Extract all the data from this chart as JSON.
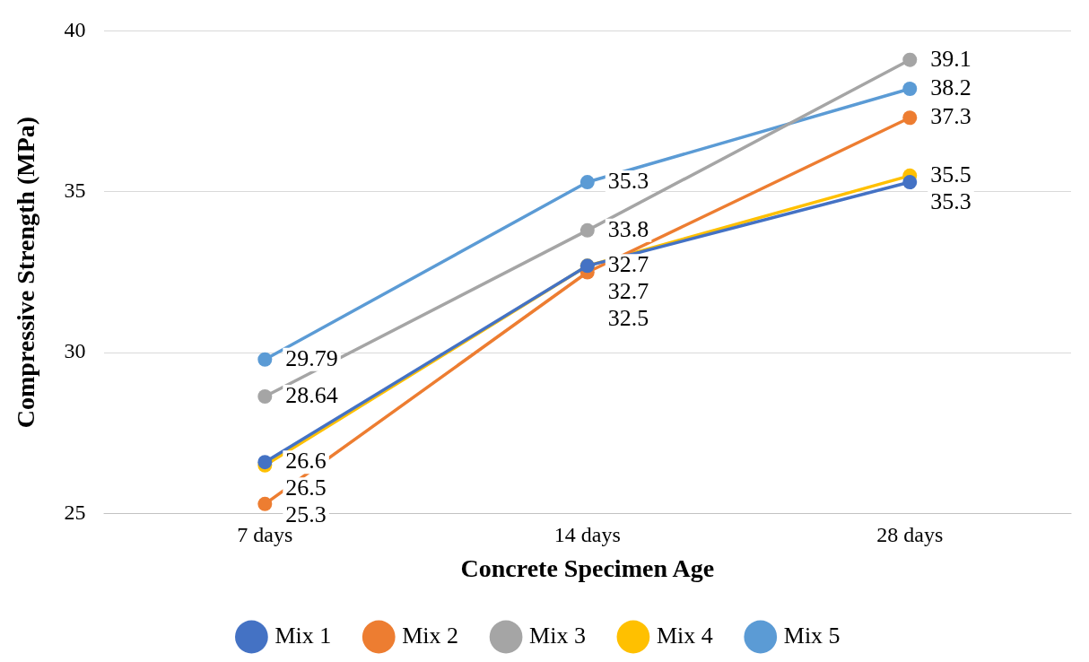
{
  "chart_data": {
    "type": "line",
    "xlabel": "Concrete Specimen Age",
    "ylabel": "Compressive Strength (MPa)",
    "categories": [
      "7 days",
      "14 days",
      "28 days"
    ],
    "series": [
      {
        "name": "Mix 1",
        "color": "#4472c4",
        "values": [
          26.6,
          32.7,
          35.3
        ]
      },
      {
        "name": "Mix 2",
        "color": "#ed7d31",
        "values": [
          25.3,
          32.5,
          37.3
        ]
      },
      {
        "name": "Mix 3",
        "color": "#a5a5a5",
        "values": [
          28.64,
          33.8,
          39.1
        ]
      },
      {
        "name": "Mix 4",
        "color": "#ffc000",
        "values": [
          26.5,
          32.7,
          35.5
        ]
      },
      {
        "name": "Mix 5",
        "color": "#5b9bd5",
        "values": [
          29.79,
          35.3,
          38.2
        ]
      }
    ],
    "ylim": [
      25,
      40
    ],
    "yticks": [
      25,
      30,
      35,
      40
    ],
    "grid": "y",
    "legend": "bottom",
    "marker": "circle",
    "line_style": "solid",
    "data_labels": true
  }
}
